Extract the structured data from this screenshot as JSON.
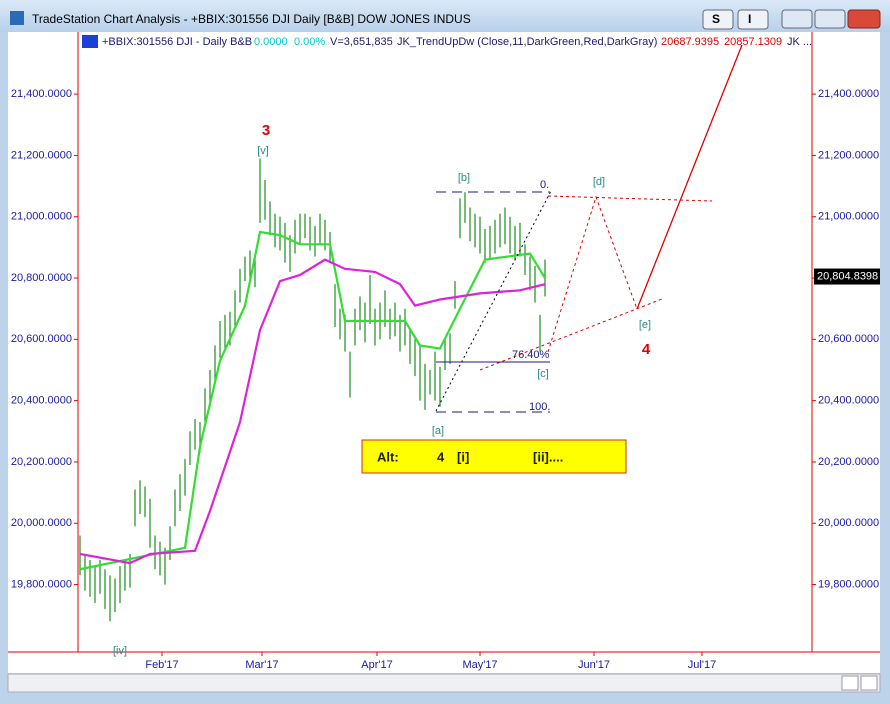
{
  "window": {
    "title": "TradeStation Chart Analysis - +BBIX:301556 DJI Daily [B&B] DOW JONES INDUS",
    "buttons": [
      "S",
      "I"
    ]
  },
  "status": {
    "symbol": "+BBIX:301556 DJI - Daily  B&B",
    "change": "0.0000",
    "change_pct": "0.00%",
    "volume": "V=3,651,835",
    "indicator": "JK_TrendUpDw (Close,11,DarkGreen,Red,DarkGray)",
    "value_1": "20687.9395",
    "value_2": "20857.1309",
    "more": "JK ..."
  },
  "annotations": {
    "wave_3": "3",
    "v": "[v]",
    "b": "[b]",
    "d": "[d]",
    "e": "[e]",
    "wave_4": "4",
    "a": "[a]",
    "c": "[c]",
    "iv": "[iv]",
    "fib_0": "0.",
    "fib_76": "76.40%",
    "fib_100": "100.",
    "alt": [
      "Alt:",
      "4",
      "[i]",
      "[ii]...."
    ]
  },
  "chart_data": {
    "type": "hlc_bars",
    "xlim": [
      -0.4,
      146.4
    ],
    "xticks": [
      {
        "value": 16.4,
        "label": "Feb'17"
      },
      {
        "value": 36.4,
        "label": "Mar'17"
      },
      {
        "value": 59.4,
        "label": "Apr'17"
      },
      {
        "value": 80,
        "label": "May'17"
      },
      {
        "value": 102.8,
        "label": "Jun'17"
      },
      {
        "value": 124.4,
        "label": "Jul'17"
      }
    ],
    "ylim": [
      19580,
      21570
    ],
    "yticks": [
      {
        "value": 19800,
        "label": "19,800.0000"
      },
      {
        "value": 20000,
        "label": "20,000.0000"
      },
      {
        "value": 20200,
        "label": "20,200.0000"
      },
      {
        "value": 20400,
        "label": "20,400.0000"
      },
      {
        "value": 20600,
        "label": "20,600.0000"
      },
      {
        "value": 20800,
        "label": "20,800.0000"
      },
      {
        "value": 21000,
        "label": "21,000.0000"
      },
      {
        "value": 21200,
        "label": "21,200.0000"
      },
      {
        "value": 21400,
        "label": "21,400.0000"
      }
    ],
    "bar_color": "#1e8c1e",
    "high": [
      19960,
      19900,
      19880,
      19860,
      19880,
      19850,
      19830,
      19820,
      19860,
      19880,
      19900,
      20110,
      20140,
      20120,
      20080,
      19960,
      19940,
      19920,
      19990,
      20110,
      20160,
      20210,
      20300,
      20340,
      20330,
      20440,
      20500,
      20580,
      20660,
      20680,
      20690,
      20760,
      20830,
      20870,
      20890,
      20870,
      21190,
      21120,
      21050,
      21010,
      21000,
      20980,
      20940,
      20990,
      21010,
      21010,
      21000,
      20970,
      21010,
      20990,
      20950,
      20780,
      20700,
      20680,
      20560,
      20700,
      20740,
      20720,
      20810,
      20700,
      20720,
      20760,
      20700,
      20720,
      20680,
      20700,
      20630,
      20600,
      20580,
      20520,
      20500,
      20560,
      20510,
      20600,
      20620,
      20790,
      21060,
      21080,
      21030,
      21010,
      21000,
      20960,
      20970,
      20990,
      21010,
      21030,
      21000,
      20970,
      20980,
      20910,
      20870,
      20840,
      20680,
      20860
    ],
    "low": [
      19830,
      19780,
      19760,
      19740,
      19770,
      19720,
      19680,
      19710,
      19740,
      19780,
      19790,
      19990,
      20030,
      20020,
      19920,
      19850,
      19830,
      19800,
      19880,
      19990,
      20040,
      20090,
      20190,
      20240,
      20230,
      20320,
      20380,
      20460,
      20540,
      20570,
      20580,
      20640,
      20720,
      20790,
      20790,
      20770,
      20980,
      20990,
      20940,
      20900,
      20890,
      20850,
      20820,
      20880,
      20910,
      20930,
      20890,
      20870,
      20910,
      20890,
      20850,
      20640,
      20600,
      20560,
      20410,
      20580,
      20630,
      20590,
      20650,
      20580,
      20600,
      20640,
      20600,
      20610,
      20560,
      20580,
      20520,
      20480,
      20400,
      20370,
      20420,
      20400,
      20380,
      20500,
      20520,
      20700,
      20930,
      20980,
      20920,
      20900,
      20880,
      20850,
      20860,
      20880,
      20900,
      20910,
      20880,
      20860,
      20870,
      20810,
      20760,
      20720,
      20560,
      20740
    ],
    "lines": [
      {
        "color": "#33dd33",
        "x": [
          0,
          21,
          24,
          28,
          33,
          36,
          40,
          44,
          50,
          53,
          56,
          65,
          68,
          72,
          76,
          81,
          90,
          93
        ],
        "values": [
          19850,
          19920,
          20250,
          20530,
          20710,
          20950,
          20940,
          20910,
          20910,
          20660,
          20660,
          20660,
          20580,
          20570,
          20700,
          20860,
          20880,
          20800
        ]
      },
      {
        "color": "#dd22dd",
        "x": [
          0,
          10,
          14,
          23,
          26,
          32,
          36,
          40,
          44,
          49,
          53,
          59,
          64,
          67,
          72,
          80,
          88,
          93
        ],
        "values": [
          19900,
          19870,
          19900,
          19910,
          20040,
          20330,
          20630,
          20790,
          20810,
          20860,
          20830,
          20820,
          20780,
          20710,
          20730,
          20750,
          20760,
          20780
        ]
      }
    ],
    "last_price": {
      "value": 20804.8398,
      "label": "20,804.8398"
    }
  }
}
